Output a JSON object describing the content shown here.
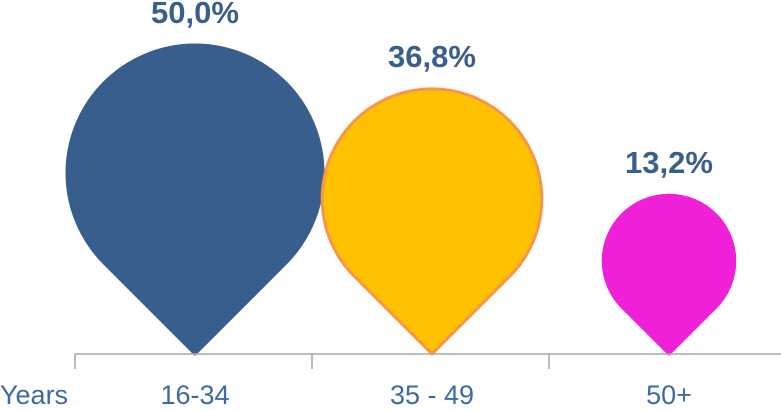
{
  "chart_data": {
    "type": "bar",
    "x_axis_prefix": "Years",
    "categories": [
      "16-34",
      "35 - 49",
      "50+"
    ],
    "values": [
      50.0,
      36.8,
      13.2
    ],
    "value_labels": [
      "50,0%",
      "36,8%",
      "13,2%"
    ],
    "unit": "%",
    "colors": {
      "fills": [
        "#375e8c",
        "#ffc000",
        "#f020d8"
      ],
      "strokes": [
        "#375e8c",
        "#f79646",
        "#f020d8"
      ],
      "value_label": "#3a5f8f",
      "category_label": "#3d6aa6",
      "axis": "#a6a6a6"
    },
    "grid": false,
    "legend": "none"
  }
}
